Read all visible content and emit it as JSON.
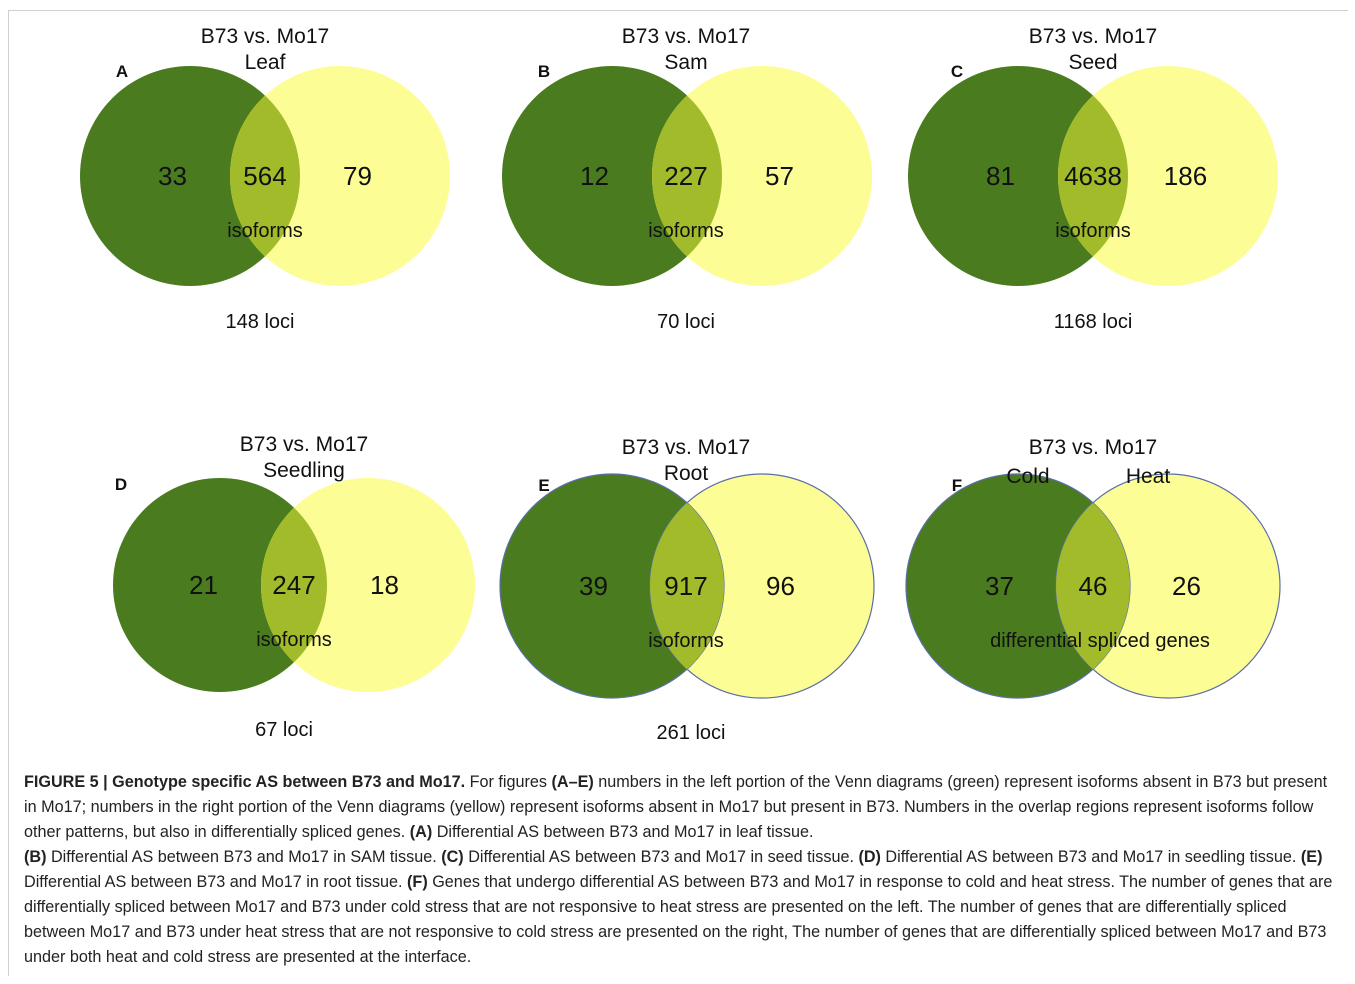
{
  "panels": [
    {
      "letter": "A",
      "title": "B73 vs. Mo17",
      "subtitle": "Leaf",
      "left": "33",
      "center": "564",
      "right": "79",
      "region_label": "isoforms",
      "footer": "148 loci"
    },
    {
      "letter": "B",
      "title": "B73 vs. Mo17",
      "subtitle": "Sam",
      "left": "12",
      "center": "227",
      "right": "57",
      "region_label": "isoforms",
      "footer": "70 loci"
    },
    {
      "letter": "C",
      "title": "B73 vs. Mo17",
      "subtitle": "Seed",
      "left": "81",
      "center": "4638",
      "right": "186",
      "region_label": "isoforms",
      "footer": "1168 loci"
    },
    {
      "letter": "D",
      "title": "B73 vs. Mo17",
      "subtitle": "Seedling",
      "left": "21",
      "center": "247",
      "right": "18",
      "region_label": "isoforms",
      "footer": "67 loci"
    },
    {
      "letter": "E",
      "title": "B73 vs. Mo17",
      "subtitle": "Root",
      "left": "39",
      "center": "917",
      "right": "96",
      "region_label": "isoforms",
      "footer": "261 loci"
    },
    {
      "letter": "F",
      "title": "B73 vs. Mo17",
      "left_label": "Cold",
      "right_label": "Heat",
      "left": "37",
      "center": "46",
      "right": "26",
      "region_label": "differential spliced genes"
    }
  ],
  "colors": {
    "green": "#4a7c1f",
    "yellow": "#fdfd96",
    "overlap": "#a2bb2a",
    "outline": "#5b6ea8"
  },
  "caption": {
    "heading": "FIGURE 5 | Genotype specific AS between B73 and Mo17.",
    "p1": " For figures ",
    "ref_ae": "(A–E)",
    "p2": " numbers in the left portion of the Venn diagrams (green) represent isoforms absent in B73 but present in Mo17; numbers in the right portion of the Venn diagrams (yellow) represent isoforms absent in Mo17 but present in B73. Numbers in the overlap regions represent isoforms follow other patterns, but also in differentially spliced genes. ",
    "ref_a": "(A)",
    "text_a": " Differential AS between B73 and Mo17 in leaf tissue. ",
    "ref_b": "(B)",
    "text_b": " Differential AS between B73 and Mo17 in SAM tissue. ",
    "ref_c": "(C)",
    "text_c": " Differential AS between B73 and Mo17 in seed tissue. ",
    "ref_d": "(D)",
    "text_d": " Differential AS between B73 and Mo17 in seedling tissue. ",
    "ref_e": "(E)",
    "text_e": " Differential AS between B73 and Mo17 in root tissue. ",
    "ref_f": "(F)",
    "text_f": " Genes that undergo differential AS between B73 and Mo17 in response to cold and heat stress. The number of genes that are differentially spliced between Mo17 and B73 under cold stress that are not responsive to heat stress are presented on the left. The number of genes that are differentially spliced between Mo17 and B73 under heat stress that are not responsive to cold stress are presented on the right, The number of genes that are differentially spliced between Mo17 and B73 under both heat and cold stress are presented at the interface."
  }
}
